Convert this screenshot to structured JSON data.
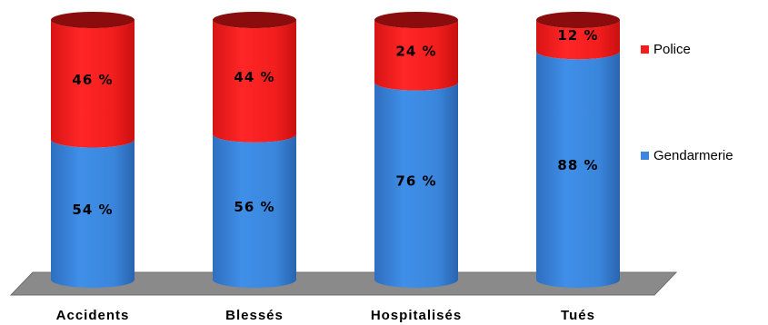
{
  "chart_data": {
    "type": "bar",
    "stacked": true,
    "style": "3d-cylinder",
    "categories": [
      "Accidents",
      "Blessés",
      "Hospitalisés",
      "Tués"
    ],
    "series": [
      {
        "name": "Gendarmerie",
        "color": "#3c86de",
        "values": [
          54,
          56,
          76,
          88
        ],
        "labels": [
          "54 %",
          "56 %",
          "76 %",
          "88 %"
        ]
      },
      {
        "name": "Police",
        "color": "#f21d1d",
        "values": [
          46,
          44,
          24,
          12
        ],
        "labels": [
          "46 %",
          "44 %",
          "24 %",
          "12 %"
        ]
      }
    ],
    "ylim": [
      0,
      100
    ],
    "grid": false,
    "legend": {
      "position": "right",
      "order": [
        "Police",
        "Gendarmerie"
      ]
    }
  }
}
